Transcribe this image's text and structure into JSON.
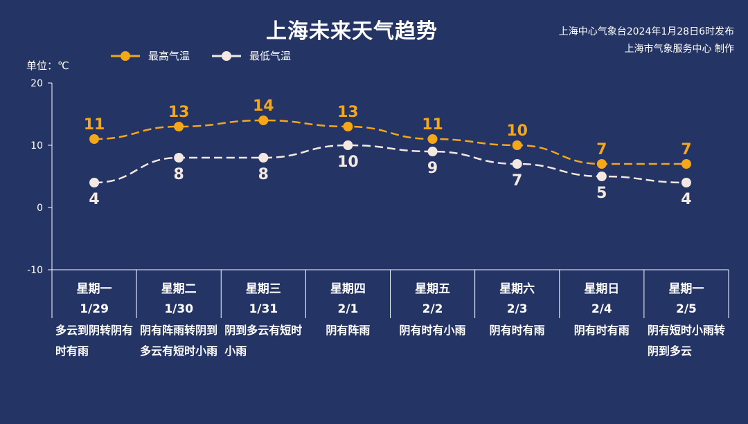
{
  "title": "上海未来天气趋势",
  "source": [
    "上海中心气象台2024年1月28日6时发布",
    "上海市气象服务中心 制作"
  ],
  "unit_label": "单位：℃",
  "colors": {
    "high": "#F5A71B",
    "low": "#F4E9E2",
    "background": "#243464",
    "axis": "#FFFFFF"
  },
  "chart_data": {
    "type": "line",
    "categories": [
      "星期一 1/29",
      "星期二 1/30",
      "星期三 1/31",
      "星期四 2/1",
      "星期五 2/2",
      "星期六 2/3",
      "星期日 2/4",
      "星期一 2/5"
    ],
    "days": [
      {
        "weekday": "星期一",
        "date": "1/29",
        "weather": "多云到阴转阴有时有雨"
      },
      {
        "weekday": "星期二",
        "date": "1/30",
        "weather": "阴有阵雨转阴到多云有短时小雨"
      },
      {
        "weekday": "星期三",
        "date": "1/31",
        "weather": "阴到多云有短时小雨"
      },
      {
        "weekday": "星期四",
        "date": "2/1",
        "weather": "阴有阵雨"
      },
      {
        "weekday": "星期五",
        "date": "2/2",
        "weather": "阴有时有小雨"
      },
      {
        "weekday": "星期六",
        "date": "2/3",
        "weather": "阴有时有雨"
      },
      {
        "weekday": "星期日",
        "date": "2/4",
        "weather": "阴有时有雨"
      },
      {
        "weekday": "星期一",
        "date": "2/5",
        "weather": "阴有短时小雨转阴到多云"
      }
    ],
    "series": [
      {
        "name": "最高气温",
        "values": [
          11,
          13,
          14,
          13,
          11,
          10,
          7,
          7
        ]
      },
      {
        "name": "最低气温",
        "values": [
          4,
          8,
          8,
          10,
          9,
          7,
          5,
          4
        ]
      }
    ],
    "ylim": [
      -10,
      20
    ],
    "yticks": [
      "-10",
      "0",
      "10",
      "20"
    ],
    "ylabel": "单位：℃",
    "grid": false,
    "legend_position": "top-left"
  }
}
